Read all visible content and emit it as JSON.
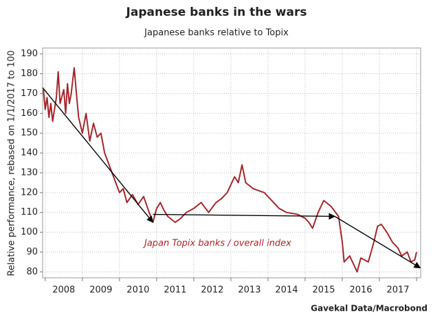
{
  "chart_data": {
    "type": "line",
    "title": "Japanese banks in the wars",
    "subtitle": "Japanese banks relative to Topix",
    "y_label": "Relative performance, rebased on 1/1/2017 to 100",
    "source": "Gavekal Data/Macrobond",
    "annotation": "Japan Topix banks / overall index",
    "xlim": [
      2007.93,
      2018.11
    ],
    "ylim": [
      77,
      193
    ],
    "yticks": [
      80,
      90,
      100,
      110,
      120,
      130,
      140,
      150,
      160,
      170,
      180,
      190
    ],
    "xticks": [
      {
        "value": 2008.5,
        "label": "2008"
      },
      {
        "value": 2009.5,
        "label": "2009"
      },
      {
        "value": 2010.5,
        "label": "2010"
      },
      {
        "value": 2011.5,
        "label": "2011"
      },
      {
        "value": 2012.5,
        "label": "2012"
      },
      {
        "value": 2013.5,
        "label": "2013"
      },
      {
        "value": 2014.5,
        "label": "2014"
      },
      {
        "value": 2015.5,
        "label": "2015"
      },
      {
        "value": 2016.5,
        "label": "2016"
      },
      {
        "value": 2017.5,
        "label": "2017"
      }
    ],
    "xgrid": [
      2008,
      2009,
      2010,
      2011,
      2012,
      2013,
      2014,
      2015,
      2016,
      2017,
      2018
    ],
    "grid": true,
    "x": [
      2007.95,
      2008.0,
      2008.05,
      2008.1,
      2008.15,
      2008.2,
      2008.3,
      2008.35,
      2008.4,
      2008.5,
      2008.55,
      2008.6,
      2008.65,
      2008.7,
      2008.78,
      2008.85,
      2008.9,
      2009.0,
      2009.1,
      2009.2,
      2009.3,
      2009.4,
      2009.5,
      2009.6,
      2009.7,
      2009.8,
      2009.9,
      2010.0,
      2010.1,
      2010.2,
      2010.35,
      2010.5,
      2010.65,
      2010.8,
      2010.9,
      2011.0,
      2011.1,
      2011.2,
      2011.3,
      2011.5,
      2011.65,
      2011.8,
      2012.0,
      2012.2,
      2012.4,
      2012.6,
      2012.75,
      2012.9,
      2013.1,
      2013.2,
      2013.3,
      2013.4,
      2013.6,
      2013.9,
      2014.1,
      2014.3,
      2014.5,
      2014.8,
      2015.0,
      2015.1,
      2015.2,
      2015.35,
      2015.5,
      2015.7,
      2015.9,
      2016.0,
      2016.05,
      2016.2,
      2016.3,
      2016.4,
      2016.5,
      2016.7,
      2016.85,
      2016.95,
      2017.05,
      2017.2,
      2017.35,
      2017.5,
      2017.6,
      2017.75,
      2017.85,
      2017.95,
      2018.0
    ],
    "series": [
      {
        "name": "Japan Topix banks / overall index",
        "color": "#a4262c",
        "values": [
          172,
          162,
          168,
          158,
          165,
          156,
          168,
          181,
          165,
          172,
          160,
          175,
          165,
          170,
          183,
          168,
          158,
          150,
          160,
          146,
          155,
          148,
          150,
          140,
          135,
          130,
          125,
          120,
          122,
          115,
          119,
          114,
          118,
          110,
          105,
          112,
          115,
          111,
          108,
          105,
          107,
          110,
          112,
          115,
          110,
          115,
          117,
          120,
          128,
          125,
          134,
          125,
          122,
          120,
          116,
          112,
          110,
          109,
          107,
          105,
          102,
          110,
          116,
          113,
          108,
          95,
          85,
          88,
          84,
          80,
          87,
          85,
          95,
          103,
          104,
          100,
          95,
          92,
          88,
          90,
          85,
          86,
          90
        ]
      }
    ],
    "trend_lines": [
      {
        "x": [
          2007.93,
          2010.9
        ],
        "y": [
          173,
          105
        ]
      },
      {
        "x": [
          2010.9,
          2015.8
        ],
        "y": [
          109,
          108
        ]
      },
      {
        "x": [
          2015.8,
          2018.1
        ],
        "y": [
          108,
          82
        ]
      }
    ]
  }
}
